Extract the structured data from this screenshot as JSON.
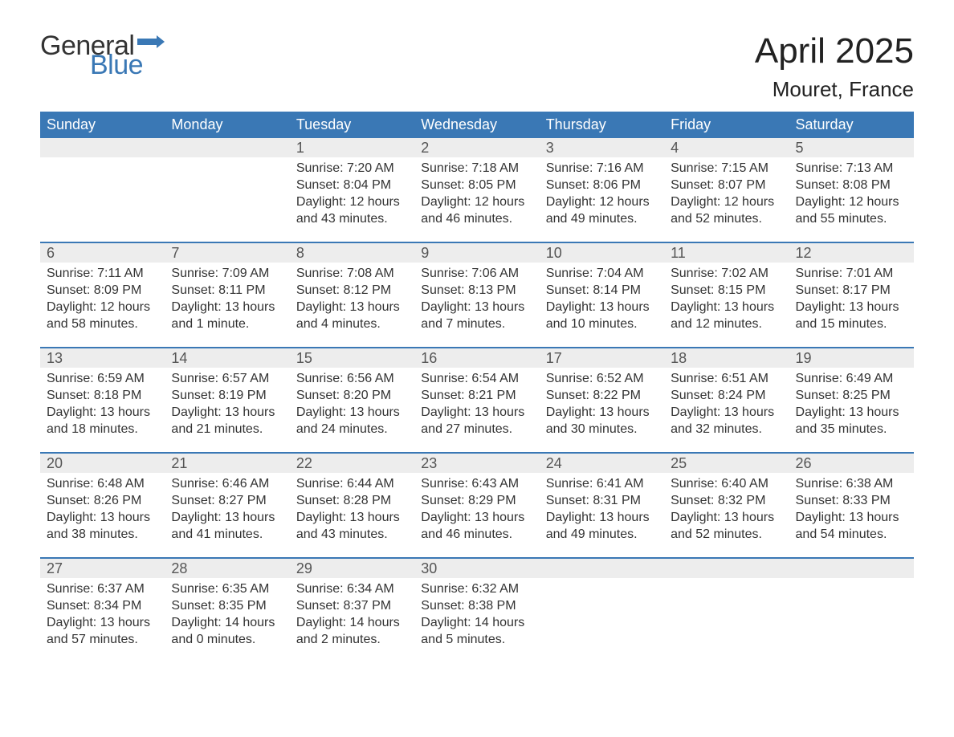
{
  "brand": {
    "part1": "General",
    "part2": "Blue"
  },
  "title": "April 2025",
  "location": "Mouret, France",
  "colors": {
    "header_bg": "#3a78b5",
    "header_text": "#ffffff",
    "daynum_bg": "#ededed",
    "text": "#333333",
    "brand_blue": "#3a78b5"
  },
  "weekdays": [
    "Sunday",
    "Monday",
    "Tuesday",
    "Wednesday",
    "Thursday",
    "Friday",
    "Saturday"
  ],
  "weeks": [
    [
      null,
      null,
      {
        "n": "1",
        "sunrise": "Sunrise: 7:20 AM",
        "sunset": "Sunset: 8:04 PM",
        "day1": "Daylight: 12 hours",
        "day2": "and 43 minutes."
      },
      {
        "n": "2",
        "sunrise": "Sunrise: 7:18 AM",
        "sunset": "Sunset: 8:05 PM",
        "day1": "Daylight: 12 hours",
        "day2": "and 46 minutes."
      },
      {
        "n": "3",
        "sunrise": "Sunrise: 7:16 AM",
        "sunset": "Sunset: 8:06 PM",
        "day1": "Daylight: 12 hours",
        "day2": "and 49 minutes."
      },
      {
        "n": "4",
        "sunrise": "Sunrise: 7:15 AM",
        "sunset": "Sunset: 8:07 PM",
        "day1": "Daylight: 12 hours",
        "day2": "and 52 minutes."
      },
      {
        "n": "5",
        "sunrise": "Sunrise: 7:13 AM",
        "sunset": "Sunset: 8:08 PM",
        "day1": "Daylight: 12 hours",
        "day2": "and 55 minutes."
      }
    ],
    [
      {
        "n": "6",
        "sunrise": "Sunrise: 7:11 AM",
        "sunset": "Sunset: 8:09 PM",
        "day1": "Daylight: 12 hours",
        "day2": "and 58 minutes."
      },
      {
        "n": "7",
        "sunrise": "Sunrise: 7:09 AM",
        "sunset": "Sunset: 8:11 PM",
        "day1": "Daylight: 13 hours",
        "day2": "and 1 minute."
      },
      {
        "n": "8",
        "sunrise": "Sunrise: 7:08 AM",
        "sunset": "Sunset: 8:12 PM",
        "day1": "Daylight: 13 hours",
        "day2": "and 4 minutes."
      },
      {
        "n": "9",
        "sunrise": "Sunrise: 7:06 AM",
        "sunset": "Sunset: 8:13 PM",
        "day1": "Daylight: 13 hours",
        "day2": "and 7 minutes."
      },
      {
        "n": "10",
        "sunrise": "Sunrise: 7:04 AM",
        "sunset": "Sunset: 8:14 PM",
        "day1": "Daylight: 13 hours",
        "day2": "and 10 minutes."
      },
      {
        "n": "11",
        "sunrise": "Sunrise: 7:02 AM",
        "sunset": "Sunset: 8:15 PM",
        "day1": "Daylight: 13 hours",
        "day2": "and 12 minutes."
      },
      {
        "n": "12",
        "sunrise": "Sunrise: 7:01 AM",
        "sunset": "Sunset: 8:17 PM",
        "day1": "Daylight: 13 hours",
        "day2": "and 15 minutes."
      }
    ],
    [
      {
        "n": "13",
        "sunrise": "Sunrise: 6:59 AM",
        "sunset": "Sunset: 8:18 PM",
        "day1": "Daylight: 13 hours",
        "day2": "and 18 minutes."
      },
      {
        "n": "14",
        "sunrise": "Sunrise: 6:57 AM",
        "sunset": "Sunset: 8:19 PM",
        "day1": "Daylight: 13 hours",
        "day2": "and 21 minutes."
      },
      {
        "n": "15",
        "sunrise": "Sunrise: 6:56 AM",
        "sunset": "Sunset: 8:20 PM",
        "day1": "Daylight: 13 hours",
        "day2": "and 24 minutes."
      },
      {
        "n": "16",
        "sunrise": "Sunrise: 6:54 AM",
        "sunset": "Sunset: 8:21 PM",
        "day1": "Daylight: 13 hours",
        "day2": "and 27 minutes."
      },
      {
        "n": "17",
        "sunrise": "Sunrise: 6:52 AM",
        "sunset": "Sunset: 8:22 PM",
        "day1": "Daylight: 13 hours",
        "day2": "and 30 minutes."
      },
      {
        "n": "18",
        "sunrise": "Sunrise: 6:51 AM",
        "sunset": "Sunset: 8:24 PM",
        "day1": "Daylight: 13 hours",
        "day2": "and 32 minutes."
      },
      {
        "n": "19",
        "sunrise": "Sunrise: 6:49 AM",
        "sunset": "Sunset: 8:25 PM",
        "day1": "Daylight: 13 hours",
        "day2": "and 35 minutes."
      }
    ],
    [
      {
        "n": "20",
        "sunrise": "Sunrise: 6:48 AM",
        "sunset": "Sunset: 8:26 PM",
        "day1": "Daylight: 13 hours",
        "day2": "and 38 minutes."
      },
      {
        "n": "21",
        "sunrise": "Sunrise: 6:46 AM",
        "sunset": "Sunset: 8:27 PM",
        "day1": "Daylight: 13 hours",
        "day2": "and 41 minutes."
      },
      {
        "n": "22",
        "sunrise": "Sunrise: 6:44 AM",
        "sunset": "Sunset: 8:28 PM",
        "day1": "Daylight: 13 hours",
        "day2": "and 43 minutes."
      },
      {
        "n": "23",
        "sunrise": "Sunrise: 6:43 AM",
        "sunset": "Sunset: 8:29 PM",
        "day1": "Daylight: 13 hours",
        "day2": "and 46 minutes."
      },
      {
        "n": "24",
        "sunrise": "Sunrise: 6:41 AM",
        "sunset": "Sunset: 8:31 PM",
        "day1": "Daylight: 13 hours",
        "day2": "and 49 minutes."
      },
      {
        "n": "25",
        "sunrise": "Sunrise: 6:40 AM",
        "sunset": "Sunset: 8:32 PM",
        "day1": "Daylight: 13 hours",
        "day2": "and 52 minutes."
      },
      {
        "n": "26",
        "sunrise": "Sunrise: 6:38 AM",
        "sunset": "Sunset: 8:33 PM",
        "day1": "Daylight: 13 hours",
        "day2": "and 54 minutes."
      }
    ],
    [
      {
        "n": "27",
        "sunrise": "Sunrise: 6:37 AM",
        "sunset": "Sunset: 8:34 PM",
        "day1": "Daylight: 13 hours",
        "day2": "and 57 minutes."
      },
      {
        "n": "28",
        "sunrise": "Sunrise: 6:35 AM",
        "sunset": "Sunset: 8:35 PM",
        "day1": "Daylight: 14 hours",
        "day2": "and 0 minutes."
      },
      {
        "n": "29",
        "sunrise": "Sunrise: 6:34 AM",
        "sunset": "Sunset: 8:37 PM",
        "day1": "Daylight: 14 hours",
        "day2": "and 2 minutes."
      },
      {
        "n": "30",
        "sunrise": "Sunrise: 6:32 AM",
        "sunset": "Sunset: 8:38 PM",
        "day1": "Daylight: 14 hours",
        "day2": "and 5 minutes."
      },
      null,
      null,
      null
    ]
  ]
}
